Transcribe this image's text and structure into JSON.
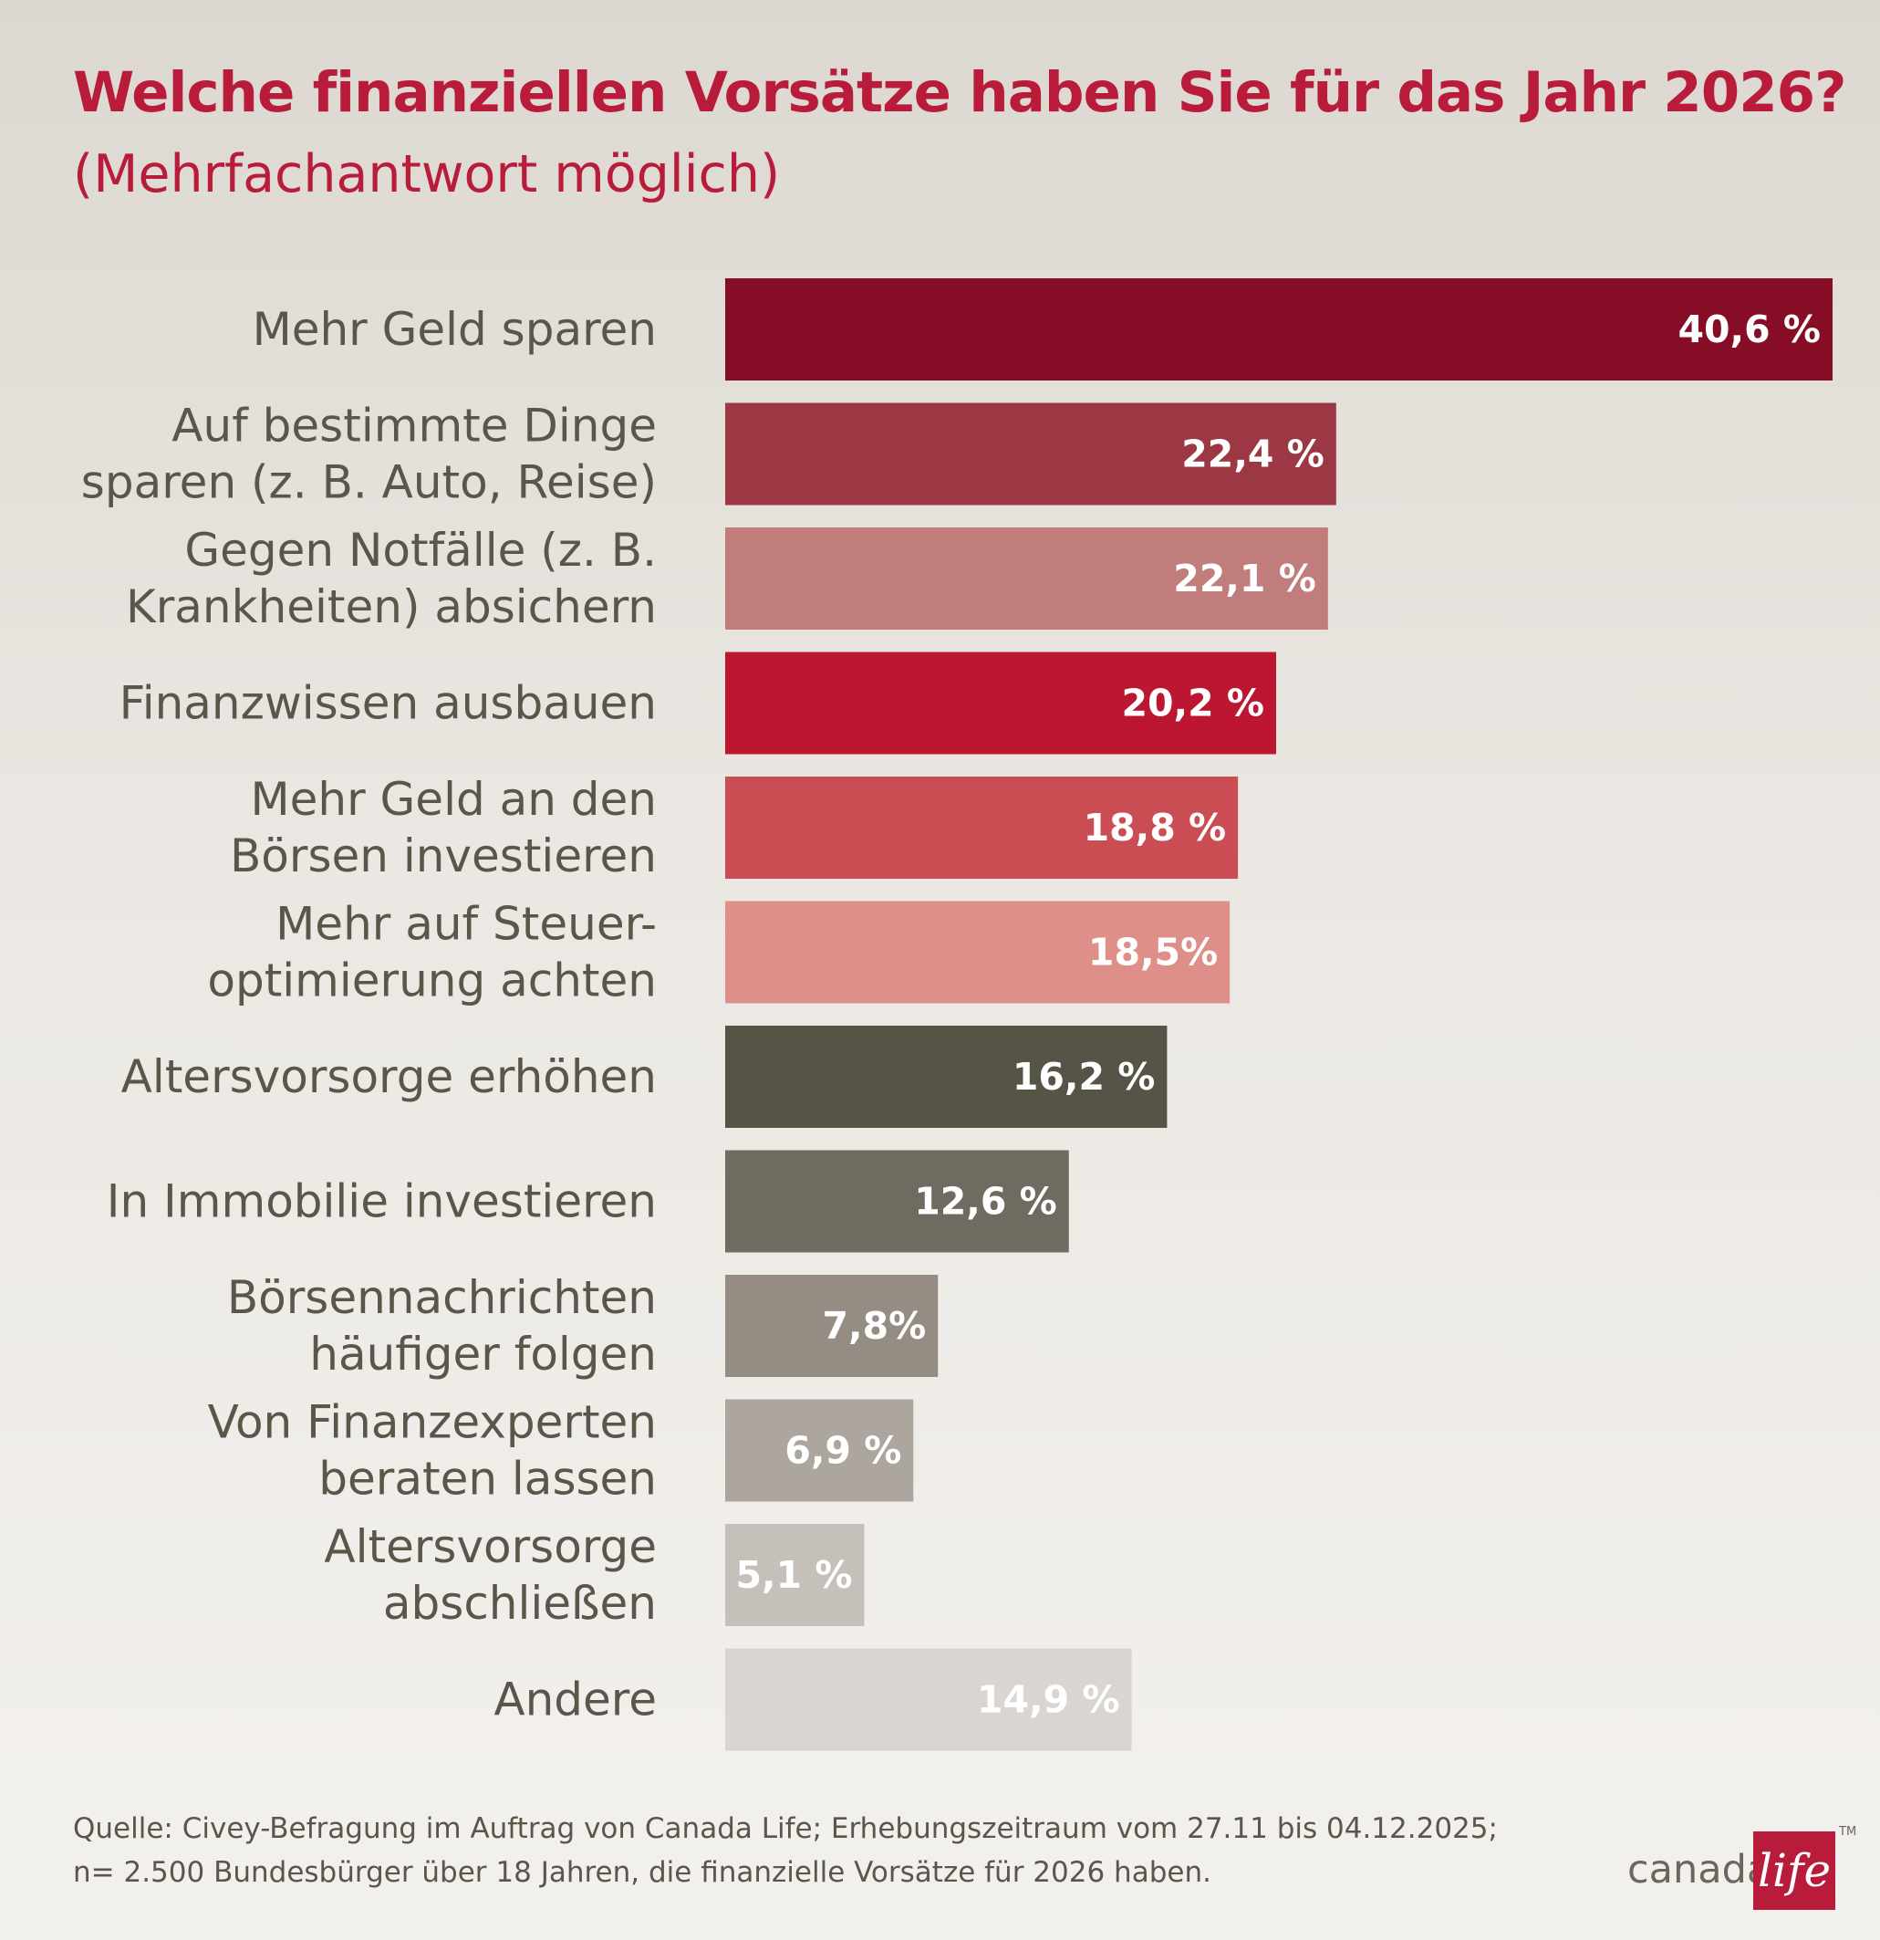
{
  "title": "Welche finanziellen Vorsätze haben Sie für das Jahr 2026?",
  "subtitle": "(Mehrfachantwort möglich)",
  "chart_data": {
    "type": "bar",
    "orientation": "horizontal",
    "title": "Welche finanziellen Vorsätze haben Sie für das Jahr 2026?",
    "subtitle": "(Mehrfachantwort möglich)",
    "unit": "%",
    "categories": [
      "Mehr Geld sparen",
      "Auf bestimmte Dinge sparen (z. B. Auto, Reise)",
      "Gegen Notfälle (z. B. Krankheiten) absichern",
      "Finanzwissen ausbauen",
      "Mehr Geld an den Börsen investieren",
      "Mehr auf Steuer-optimierung achten",
      "Altersvorsorge erhöhen",
      "In Immobilie investieren",
      "Börsennachrichten häufiger folgen",
      "Von Finanzexperten beraten lassen",
      "Altersvorsorge abschließen",
      "Andere"
    ],
    "category_lines": [
      [
        "Mehr Geld sparen"
      ],
      [
        "Auf bestimmte Dinge",
        "sparen (z. B. Auto, Reise)"
      ],
      [
        "Gegen Notfälle (z. B.",
        "Krankheiten) absichern"
      ],
      [
        "Finanzwissen ausbauen"
      ],
      [
        "Mehr Geld an den",
        "Börsen investieren"
      ],
      [
        "Mehr auf Steuer-",
        "optimierung achten"
      ],
      [
        "Altersvorsorge erhöhen"
      ],
      [
        "In Immobilie investieren"
      ],
      [
        "Börsennachrichten",
        "häufiger folgen"
      ],
      [
        "Von Finanzexperten",
        "beraten lassen"
      ],
      [
        "Altersvorsorge",
        "abschließen"
      ],
      [
        "Andere"
      ]
    ],
    "values": [
      40.6,
      22.4,
      22.1,
      20.2,
      18.8,
      18.5,
      16.2,
      12.6,
      7.8,
      6.9,
      5.1,
      14.9
    ],
    "value_labels": [
      "40,6 %",
      "22,4 %",
      "22,1 %",
      "20,2 %",
      "18,8 %",
      "18,5%",
      "16,2 %",
      "12,6 %",
      "7,8%",
      "6,9 %",
      "5,1 %",
      "14,9 %"
    ],
    "colors": [
      "#870d26",
      "#9c3844",
      "#c07d7b",
      "#bd1631",
      "#cb4d54",
      "#df8f8a",
      "#565347",
      "#6f6b61",
      "#958d84",
      "#aca69f",
      "#c5c0ba",
      "#d9d5d0"
    ],
    "xlim": [
      0,
      40.6
    ],
    "grid": false,
    "legend": "none"
  },
  "source": {
    "line1": "Quelle: Civey-Befragung im Auftrag von Canada Life; Erhebungszeitraum vom 27.11 bis 04.12.2025;",
    "line2": "n= 2.500 Bundesbürger über 18 Jahren, die finanzielle Vorsätze für 2026 haben."
  },
  "logo": {
    "word": "canada",
    "script": "life",
    "trademark": "TM",
    "brand_color": "#b81c3a"
  }
}
